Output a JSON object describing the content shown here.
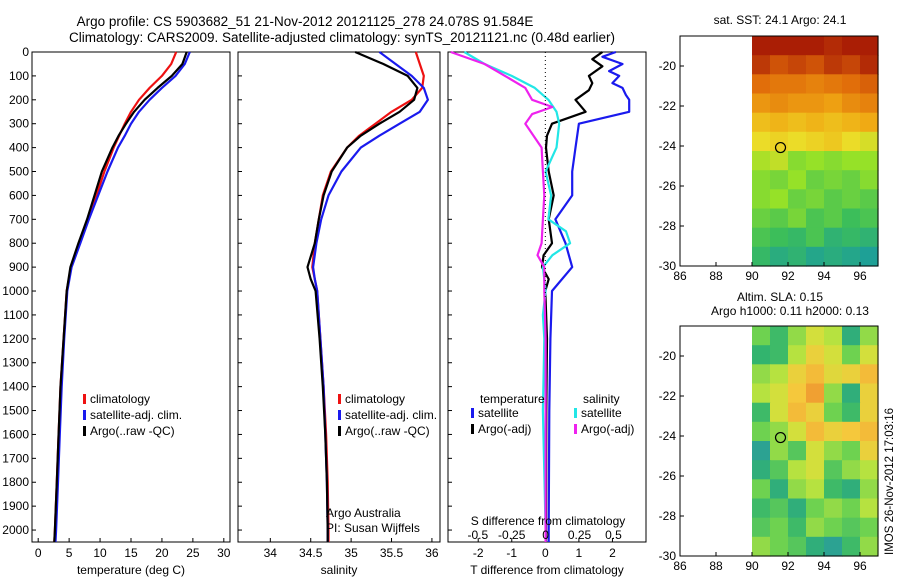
{
  "header": {
    "line1": "Argo profile: CS 5903682_51 21-Nov-2012 20121125_278 24.078S 91.584E",
    "line2": "Climatology: CARS2009. Satellite-adjusted climatology: synTS_20121121.nc (0.48d earlier)"
  },
  "colors": {
    "climatology": "#ee1111",
    "satellite": "#1a1aee",
    "argo": "#000000",
    "sat_salinity": "#22e6e6",
    "argo_salinity": "#ee22ee"
  },
  "depth_axis": {
    "ticks": [
      "0",
      "100",
      "200",
      "300",
      "400",
      "500",
      "600",
      "700",
      "800",
      "900",
      "1000",
      "1100",
      "1200",
      "1300",
      "1400",
      "1500",
      "1600",
      "1700",
      "1800",
      "1900",
      "2000"
    ]
  },
  "chart_data": [
    {
      "type": "line",
      "id": "temperature",
      "xlabel": "temperature (deg C)",
      "ylabel": "depth",
      "xlim": [
        -1,
        31
      ],
      "ylim": [
        2050,
        0
      ],
      "xticks": [
        "0",
        "5",
        "10",
        "15",
        "20",
        "25",
        "30"
      ],
      "legend": [
        "climatology",
        "satellite-adj. clim.",
        "Argo(..raw -QC)"
      ],
      "series": [
        {
          "name": "climatology",
          "color": "#ee1111",
          "depth": [
            0,
            50,
            100,
            150,
            200,
            250,
            300,
            350,
            400,
            500,
            600,
            700,
            800,
            900,
            1000,
            1200,
            1400,
            1600,
            1800,
            2000,
            2050
          ],
          "values": [
            22.3,
            21.5,
            20.0,
            18.0,
            16.3,
            15.0,
            14.0,
            13.1,
            12.2,
            10.7,
            9.4,
            8.0,
            6.6,
            5.3,
            4.6,
            4.1,
            3.6,
            3.3,
            3.0,
            2.7,
            2.6
          ]
        },
        {
          "name": "satellite-adj. clim.",
          "color": "#1a1aee",
          "depth": [
            0,
            50,
            100,
            150,
            200,
            250,
            300,
            350,
            400,
            500,
            600,
            700,
            800,
            900,
            1000,
            1200,
            1400,
            1600,
            1800,
            2000,
            2050
          ],
          "values": [
            24.5,
            23.7,
            22.2,
            20.0,
            18.0,
            16.3,
            15.0,
            14.0,
            12.9,
            11.2,
            9.7,
            8.2,
            6.8,
            5.4,
            4.7,
            4.2,
            3.8,
            3.5,
            3.2,
            2.9,
            2.8
          ]
        },
        {
          "name": "Argo(..raw -QC)",
          "color": "#000000",
          "depth": [
            0,
            50,
            100,
            150,
            200,
            250,
            300,
            350,
            400,
            500,
            600,
            700,
            800,
            900,
            1000,
            1200,
            1400,
            1600,
            1800,
            2000,
            2050
          ],
          "values": [
            24.0,
            23.3,
            21.6,
            19.3,
            17.2,
            15.5,
            14.2,
            13.0,
            12.0,
            10.3,
            9.1,
            7.9,
            6.5,
            5.2,
            4.6,
            4.1,
            3.6,
            3.3,
            3.0,
            2.7,
            2.6
          ]
        }
      ]
    },
    {
      "type": "line",
      "id": "salinity",
      "xlabel": "salinity",
      "ylabel": "depth",
      "xlim": [
        33.6,
        36.1
      ],
      "ylim": [
        2050,
        0
      ],
      "xticks": [
        "34",
        "34.5",
        "35",
        "35.5",
        "36"
      ],
      "legend": [
        "climatology",
        "satellite-adj. clim.",
        "Argo(..raw -QC)"
      ],
      "annotation": [
        "Argo Australia",
        "PI: Susan Wijffels"
      ],
      "series": [
        {
          "name": "climatology",
          "color": "#ee1111",
          "depth": [
            0,
            50,
            100,
            150,
            200,
            250,
            300,
            350,
            400,
            500,
            600,
            700,
            800,
            900,
            950,
            1000,
            1200,
            1400,
            1600,
            1800,
            2000,
            2050
          ],
          "values": [
            35.8,
            35.85,
            35.9,
            35.88,
            35.75,
            35.5,
            35.3,
            35.1,
            34.95,
            34.75,
            34.65,
            34.6,
            34.55,
            34.52,
            34.55,
            34.58,
            34.62,
            34.66,
            34.69,
            34.71,
            34.72,
            34.72
          ]
        },
        {
          "name": "satellite-adj. clim.",
          "color": "#1a1aee",
          "depth": [
            0,
            50,
            100,
            150,
            200,
            250,
            300,
            350,
            400,
            500,
            600,
            700,
            800,
            900,
            950,
            1000,
            1200,
            1400,
            1600,
            1800,
            2000,
            2050
          ],
          "values": [
            35.35,
            35.55,
            35.75,
            35.9,
            35.95,
            35.85,
            35.6,
            35.35,
            35.12,
            34.88,
            34.72,
            34.63,
            34.57,
            34.53,
            34.55,
            34.58,
            34.62,
            34.66,
            34.68,
            34.7,
            34.71,
            34.71
          ]
        },
        {
          "name": "Argo(..raw -QC)",
          "color": "#000000",
          "depth": [
            0,
            50,
            100,
            150,
            200,
            250,
            300,
            350,
            400,
            500,
            600,
            700,
            800,
            900,
            950,
            1000,
            1200,
            1400,
            1600,
            1800,
            2000,
            2050
          ],
          "values": [
            35.05,
            35.4,
            35.7,
            35.82,
            35.78,
            35.6,
            35.35,
            35.12,
            34.95,
            34.76,
            34.66,
            34.6,
            34.55,
            34.46,
            34.5,
            34.56,
            34.61,
            34.65,
            34.68,
            34.7,
            34.71,
            34.71
          ]
        }
      ]
    },
    {
      "type": "line",
      "id": "differences",
      "xlabel": "T difference from climatology",
      "xlabel2": "S difference from climatology",
      "xlim": [
        -2.9,
        3.0
      ],
      "xlim_s": [
        -0.72,
        0.74
      ],
      "ylim": [
        2050,
        0
      ],
      "xticks": [
        "-2",
        "-1",
        "0",
        "1",
        "2"
      ],
      "xticks_s": [
        "-0.5",
        "-0.25",
        "0",
        "0.25",
        "0.5"
      ],
      "legend_titles": [
        "temperature",
        "salinity"
      ],
      "legend": [
        "satellite",
        "Argo(-adj)",
        "satellite",
        "Argo(-adj)"
      ],
      "series": [
        {
          "name": "T satellite",
          "color": "#1a1aee",
          "scale": "T",
          "depth": [
            0,
            20,
            50,
            80,
            100,
            130,
            150,
            180,
            200,
            250,
            300,
            400,
            500,
            600,
            700,
            800,
            900,
            1000,
            1200,
            1500,
            2000,
            2050
          ],
          "values": [
            2.1,
            1.7,
            2.3,
            1.9,
            2.2,
            2.0,
            2.3,
            2.4,
            2.5,
            2.5,
            1.0,
            0.9,
            0.8,
            0.8,
            0.3,
            0.6,
            0.8,
            0.2,
            0.15,
            0.12,
            0.1,
            0.1
          ]
        },
        {
          "name": "T Argo(-adj)",
          "color": "#000000",
          "scale": "T",
          "depth": [
            0,
            30,
            60,
            100,
            130,
            160,
            200,
            250,
            300,
            350,
            400,
            500,
            600,
            700,
            800,
            850,
            900,
            950,
            1000,
            1200,
            1500,
            2000,
            2050
          ],
          "values": [
            1.7,
            1.4,
            1.7,
            1.3,
            1.4,
            1.3,
            0.9,
            1.2,
            0.2,
            0.05,
            0.02,
            0.1,
            0.25,
            0.1,
            0.2,
            -0.05,
            -0.1,
            0.1,
            0.0,
            0.05,
            0.03,
            0.02,
            0.02
          ]
        },
        {
          "name": "S satellite",
          "color": "#22e6e6",
          "scale": "S",
          "depth": [
            0,
            50,
            100,
            150,
            200,
            250,
            300,
            400,
            500,
            600,
            700,
            750,
            800,
            850,
            900,
            1000,
            1100,
            1200,
            1500,
            2000,
            2050
          ],
          "values": [
            -0.6,
            -0.45,
            -0.25,
            -0.08,
            0.02,
            0.08,
            0.1,
            0.08,
            0.0,
            0.04,
            0.02,
            0.15,
            0.18,
            0.05,
            -0.02,
            0.0,
            -0.02,
            -0.01,
            -0.02,
            0.0,
            0.0
          ]
        },
        {
          "name": "S Argo(-adj)",
          "color": "#ee22ee",
          "scale": "S",
          "depth": [
            0,
            50,
            100,
            150,
            200,
            230,
            260,
            300,
            400,
            500,
            600,
            700,
            800,
            850,
            900,
            1000,
            1200,
            1500,
            2000,
            2050
          ],
          "values": [
            -0.7,
            -0.45,
            -0.3,
            -0.15,
            -0.1,
            0.05,
            -0.1,
            -0.15,
            -0.03,
            -0.02,
            -0.01,
            -0.02,
            -0.03,
            -0.06,
            -0.01,
            -0.01,
            0.0,
            0.0,
            0.0,
            0.0
          ]
        }
      ]
    },
    {
      "type": "heatmap",
      "id": "sst_map",
      "title": "sat. SST: 24.1  Argo: 24.1",
      "xlim": [
        86,
        97
      ],
      "ylim": [
        -30,
        -18.5
      ],
      "xticks": [
        "86",
        "88",
        "90",
        "92",
        "94",
        "96"
      ],
      "yticks": [
        "-20",
        "-22",
        "-24",
        "-26",
        "-28",
        "-30"
      ],
      "data_lon": [
        90,
        97
      ],
      "argo_lon": 91.584,
      "argo_lat": -24.078,
      "rows": [
        [
          26.0,
          26.1,
          26.2,
          26.0,
          25.9,
          26.1,
          26.3
        ],
        [
          25.8,
          25.6,
          25.7,
          25.6,
          25.8,
          25.7,
          25.9
        ],
        [
          25.4,
          25.3,
          25.3,
          25.2,
          25.3,
          25.4,
          25.5
        ],
        [
          25.0,
          25.1,
          25.0,
          25.0,
          24.9,
          25.1,
          25.2
        ],
        [
          24.6,
          24.7,
          24.6,
          24.7,
          24.6,
          24.7,
          24.8
        ],
        [
          24.3,
          24.4,
          24.3,
          24.4,
          24.5,
          24.3,
          24.2
        ],
        [
          24.0,
          24.1,
          23.8,
          23.9,
          23.8,
          23.9,
          23.9
        ],
        [
          23.8,
          23.7,
          23.9,
          23.6,
          23.7,
          23.6,
          23.8
        ],
        [
          23.8,
          23.9,
          23.6,
          23.7,
          23.5,
          23.6,
          23.5
        ],
        [
          23.6,
          23.5,
          23.7,
          23.4,
          23.5,
          23.3,
          23.4
        ],
        [
          23.4,
          23.3,
          23.2,
          23.4,
          23.1,
          23.2,
          23.1
        ],
        [
          23.2,
          23.0,
          23.1,
          22.9,
          23.0,
          22.9,
          22.8
        ]
      ]
    },
    {
      "type": "heatmap",
      "id": "sla_map",
      "title": "Altim. SLA: 0.15",
      "subtitle": "Argo h1000: 0.11 h2000: 0.13",
      "xlim": [
        86,
        97
      ],
      "ylim": [
        -30,
        -18.5
      ],
      "xticks": [
        "86",
        "88",
        "90",
        "92",
        "94",
        "96"
      ],
      "yticks": [
        "-20",
        "-22",
        "-24",
        "-26",
        "-28",
        "-30"
      ],
      "data_lon": [
        90,
        97
      ],
      "argo_lon": 91.584,
      "argo_lat": -24.078,
      "rows": [
        [
          0.1,
          0.06,
          0.12,
          0.16,
          0.14,
          0.04,
          0.12
        ],
        [
          0.05,
          0.06,
          0.14,
          0.18,
          0.16,
          0.1,
          0.16
        ],
        [
          0.12,
          0.14,
          0.18,
          0.2,
          0.17,
          0.18,
          0.2
        ],
        [
          0.14,
          0.16,
          0.19,
          0.22,
          0.12,
          0.04,
          0.18
        ],
        [
          0.06,
          0.16,
          0.2,
          0.18,
          0.1,
          0.06,
          0.18
        ],
        [
          0.1,
          0.12,
          0.16,
          0.2,
          0.18,
          0.19,
          0.2
        ],
        [
          0.02,
          0.12,
          0.08,
          0.16,
          0.12,
          0.1,
          0.18
        ],
        [
          0.04,
          0.08,
          0.14,
          0.16,
          0.08,
          0.12,
          0.14
        ],
        [
          0.1,
          0.04,
          0.12,
          0.14,
          0.06,
          0.04,
          0.12
        ],
        [
          0.06,
          0.08,
          0.04,
          0.1,
          0.12,
          0.1,
          0.14
        ],
        [
          0.08,
          0.1,
          0.06,
          0.12,
          0.1,
          0.08,
          0.1
        ],
        [
          0.12,
          0.1,
          0.08,
          0.04,
          0.02,
          0.06,
          0.12
        ]
      ]
    }
  ],
  "footer": {
    "stamp": "IMOS 26-Nov-2012 17:03:16"
  }
}
